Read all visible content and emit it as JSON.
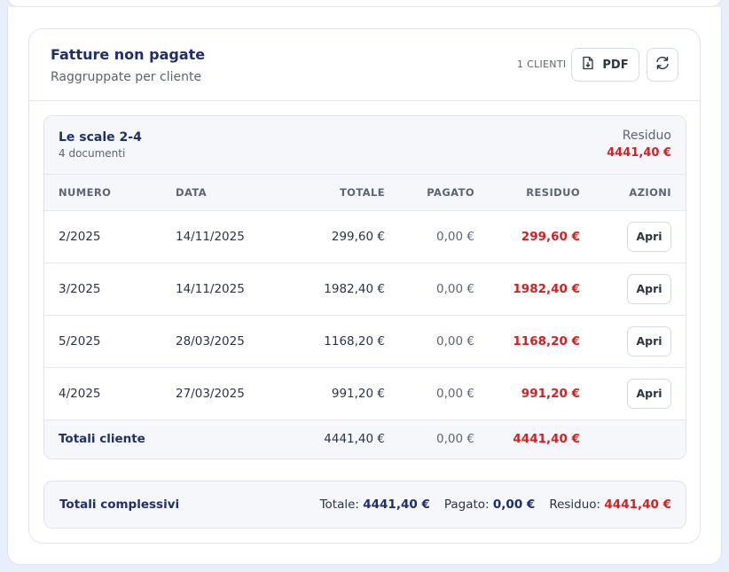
{
  "panel": {
    "title": "Fatture non pagate",
    "subtitle": "Raggruppate per cliente",
    "client_count": "1 CLIENTI",
    "pdf_label": "PDF"
  },
  "client": {
    "name": "Le scale 2-4",
    "documents": "4 documenti",
    "residuo_label": "Residuo",
    "residuo_value": "4441,40 €"
  },
  "table": {
    "headers": {
      "numero": "NUMERO",
      "data": "DATA",
      "totale": "TOTALE",
      "pagato": "PAGATO",
      "residuo": "RESIDUO",
      "azioni": "AZIONI"
    },
    "rows": [
      {
        "numero": "2/2025",
        "data": "14/11/2025",
        "totale": "299,60 €",
        "pagato": "0,00 €",
        "residuo": "299,60 €",
        "action": "Apri"
      },
      {
        "numero": "3/2025",
        "data": "14/11/2025",
        "totale": "1982,40 €",
        "pagato": "0,00 €",
        "residuo": "1982,40 €",
        "action": "Apri"
      },
      {
        "numero": "5/2025",
        "data": "28/03/2025",
        "totale": "1168,20 €",
        "pagato": "0,00 €",
        "residuo": "1168,20 €",
        "action": "Apri"
      },
      {
        "numero": "4/2025",
        "data": "27/03/2025",
        "totale": "991,20 €",
        "pagato": "0,00 €",
        "residuo": "991,20 €",
        "action": "Apri"
      }
    ],
    "footer": {
      "label": "Totali cliente",
      "totale": "4441,40 €",
      "pagato": "0,00 €",
      "residuo": "4441,40 €"
    }
  },
  "grand": {
    "label": "Totali complessivi",
    "totale_label": "Totale:",
    "totale_value": "4441,40 €",
    "pagato_label": "Pagato:",
    "pagato_value": "0,00 €",
    "residuo_label": "Residuo:",
    "residuo_value": "4441,40 €"
  },
  "colors": {
    "accent_navy": "#1e2f6b",
    "negative_red": "#d42020",
    "page_bg": "#e9effa"
  },
  "icons": {
    "pdf": "pdf-file-icon",
    "refresh": "refresh-icon"
  }
}
